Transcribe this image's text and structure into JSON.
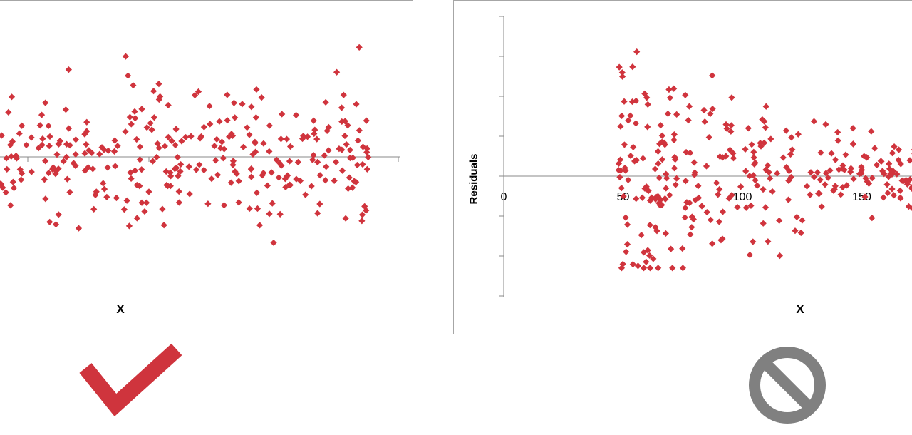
{
  "colors": {
    "marker": "#d0343d",
    "axis": "#888888",
    "check": "#cf343d",
    "no": "#808080"
  },
  "icons": {
    "good": "checkmark-icon",
    "bad": "prohibited-icon"
  },
  "chart_data": [
    {
      "type": "scatter",
      "title": "",
      "xlabel": "X",
      "ylabel": "",
      "xlim": [
        0,
        100
      ],
      "ylim": [
        -3,
        3
      ],
      "grid": false,
      "x_ticks": [],
      "series": [
        {
          "seed": 7,
          "count": 300,
          "pattern": "homoscedastic"
        }
      ]
    },
    {
      "type": "scatter",
      "title": "",
      "xlabel": "X",
      "ylabel": "Residuals",
      "xlim": [
        0,
        175
      ],
      "ylim": [
        -3,
        4
      ],
      "grid": false,
      "x_ticks": [
        "0",
        "50",
        "100",
        "150"
      ],
      "series": [
        {
          "seed": 13,
          "count": 300,
          "pattern": "heteroscedastic"
        }
      ]
    }
  ]
}
